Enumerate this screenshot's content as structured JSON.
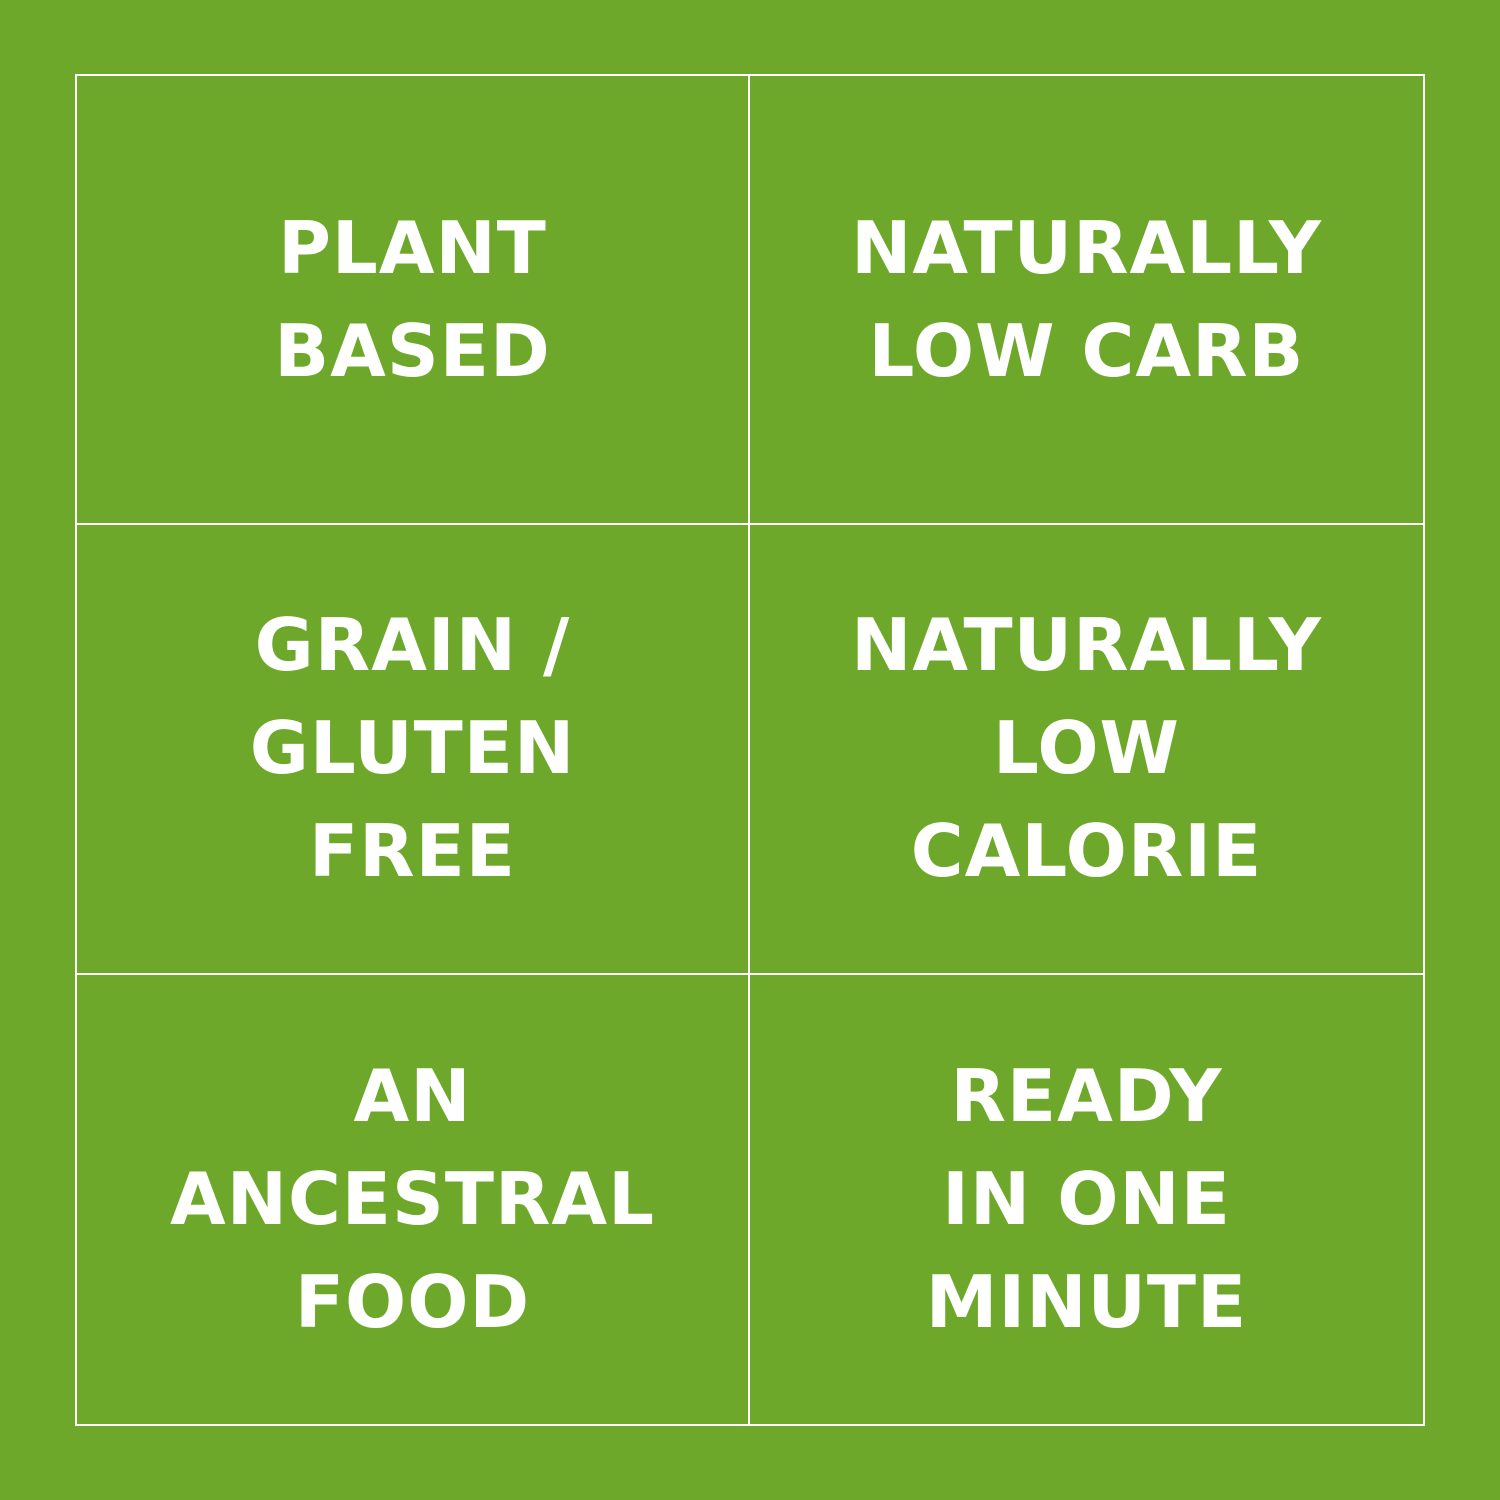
{
  "cells": [
    {
      "lines": [
        "PLANT",
        "BASED"
      ]
    },
    {
      "lines": [
        "NATURALLY",
        "LOW CARB"
      ]
    },
    {
      "lines": [
        "GRAIN /",
        "GLUTEN",
        "FREE"
      ]
    },
    {
      "lines": [
        "NATURALLY",
        "LOW",
        "CALORIE"
      ]
    },
    {
      "lines": [
        "AN",
        "ANCESTRAL",
        "FOOD"
      ]
    },
    {
      "lines": [
        "READY",
        "IN ONE",
        "MINUTE"
      ]
    }
  ]
}
